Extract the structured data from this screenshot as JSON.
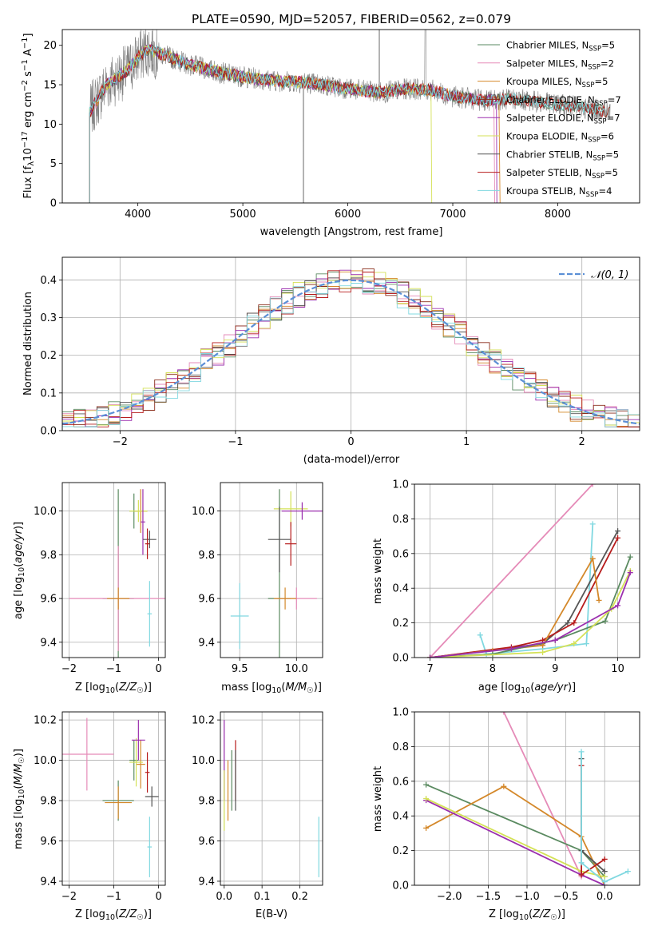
{
  "chart_data": [
    {
      "type": "line",
      "title": "PLATE=0590, MJD=52057, FIBERID=0562, z=0.079",
      "xlabel": "wavelength [Angstrom, rest frame]",
      "ylabel_parts": [
        "Flux [f",
        "λ",
        "10",
        "−17",
        " erg cm",
        "−2",
        " s",
        "−1",
        " A",
        "−1",
        "]"
      ],
      "xlim": [
        3280,
        8780
      ],
      "ylim": [
        0,
        22
      ],
      "xticks": [
        4000,
        5000,
        6000,
        7000,
        8000
      ],
      "yticks": [
        0,
        5,
        10,
        15,
        20
      ],
      "grid": false,
      "legend_placement": "right",
      "series": [
        {
          "label": "Chabrier MILES",
          "n": "5",
          "color": "#5a8a60"
        },
        {
          "label": "Salpeter MILES",
          "n": "2",
          "color": "#e58bb8"
        },
        {
          "label": "Kroupa MILES",
          "n": "5",
          "color": "#d4882a"
        },
        {
          "label": "Chabrier ELODIE",
          "n": "7",
          "color": "#8b2e1c"
        },
        {
          "label": "Salpeter ELODIE",
          "n": "7",
          "color": "#9b2fae"
        },
        {
          "label": "Kroupa ELODIE",
          "n": "6",
          "color": "#d4e157"
        },
        {
          "label": "Chabrier STELIB",
          "n": "5",
          "color": "#555555"
        },
        {
          "label": "Salpeter STELIB",
          "n": "5",
          "color": "#b71c1c"
        },
        {
          "label": "Kroupa STELIB",
          "n": "4",
          "color": "#80d8e0"
        }
      ],
      "observed_color": "#808080",
      "continuum": {
        "x": [
          3540,
          3700,
          3900,
          4000,
          4100,
          4300,
          4500,
          4800,
          5000,
          5300,
          5600,
          6000,
          6300,
          6600,
          6800,
          7000,
          7300,
          7600,
          8000,
          8300,
          8500
        ],
        "y": [
          11.5,
          15.0,
          16.8,
          18.5,
          19.5,
          18.5,
          17.5,
          16.5,
          16.0,
          15.5,
          15.3,
          14.5,
          14.0,
          14.5,
          14.3,
          13.5,
          13.0,
          13.2,
          12.5,
          12.0,
          11.5
        ]
      }
    },
    {
      "type": "bar",
      "xlabel": "(data-model)/error",
      "ylabel": "Normed distribution",
      "xlim": [
        -2.5,
        2.5
      ],
      "ylim": [
        0,
        0.46
      ],
      "xticks": [
        -2,
        -1,
        0,
        1,
        2
      ],
      "yticks": [
        0.0,
        0.1,
        0.2,
        0.3,
        0.4
      ],
      "grid": true,
      "legend": "𝒩(0, 1)",
      "legend_placement": "top-right",
      "bin_width": 0.1
    },
    {
      "type": "scatter",
      "xlabel": "Z [log10(Z/Z☉)]",
      "ylabel": "age [log10(age/yr)]",
      "xlim": [
        -2.15,
        0.15
      ],
      "ylim": [
        9.33,
        10.13
      ],
      "xticks": [
        -2,
        -1,
        0
      ],
      "yticks": [
        9.4,
        9.6,
        9.8,
        10.0
      ],
      "grid": true,
      "points": [
        {
          "x": -0.9,
          "y": 9.6,
          "xerr": 0.35,
          "yerr": 0.5,
          "color": "#5a8a60"
        },
        {
          "x": -0.55,
          "y": 10.0,
          "xerr": 0.1,
          "yerr": 0.08,
          "color": "#5a8a60"
        },
        {
          "x": -0.9,
          "y": 9.6,
          "xerr": 1.1,
          "yerr": 0.24,
          "color": "#e58bb8"
        },
        {
          "x": -0.9,
          "y": 9.6,
          "xerr": 0.25,
          "yerr": 0.05,
          "color": "#d4882a"
        },
        {
          "x": -0.4,
          "y": 10.0,
          "xerr": 0.15,
          "yerr": 0.1,
          "color": "#d4882a"
        },
        {
          "x": -0.45,
          "y": 10.0,
          "xerr": 0.2,
          "yerr": 0.05,
          "color": "#d4e157"
        },
        {
          "x": -0.35,
          "y": 9.95,
          "xerr": 0.05,
          "yerr": 0.15,
          "color": "#9b2fae"
        },
        {
          "x": -0.2,
          "y": 9.87,
          "xerr": 0.15,
          "yerr": 0.04,
          "color": "#555555"
        },
        {
          "x": -0.25,
          "y": 9.85,
          "xerr": 0.05,
          "yerr": 0.07,
          "color": "#b71c1c"
        },
        {
          "x": -0.2,
          "y": 9.53,
          "xerr": 0.05,
          "yerr": 0.15,
          "color": "#80d8e0"
        }
      ]
    },
    {
      "type": "scatter",
      "xlabel": "mass [log10(M/M☉)]",
      "ylabel": "",
      "xlim": [
        9.33,
        10.23
      ],
      "ylim": [
        9.33,
        10.13
      ],
      "xticks": [
        9.5,
        10.0
      ],
      "yticks": [
        9.4,
        9.6,
        9.8,
        10.0
      ],
      "grid": true,
      "points": [
        {
          "x": 9.85,
          "y": 9.6,
          "xerr": 0.1,
          "yerr": 0.5,
          "color": "#5a8a60"
        },
        {
          "x": 10.0,
          "y": 9.6,
          "xerr": 0.18,
          "yerr": 0.05,
          "color": "#e58bb8"
        },
        {
          "x": 9.9,
          "y": 9.6,
          "xerr": 0.1,
          "yerr": 0.05,
          "color": "#d4882a"
        },
        {
          "x": 9.95,
          "y": 10.01,
          "xerr": 0.15,
          "yerr": 0.08,
          "color": "#d4e157"
        },
        {
          "x": 10.05,
          "y": 10.0,
          "xerr": 0.18,
          "yerr": 0.04,
          "color": "#9b2fae"
        },
        {
          "x": 9.85,
          "y": 9.87,
          "xerr": 0.1,
          "yerr": 0.15,
          "color": "#555555"
        },
        {
          "x": 9.95,
          "y": 9.85,
          "xerr": 0.05,
          "yerr": 0.1,
          "color": "#b71c1c"
        },
        {
          "x": 9.5,
          "y": 9.52,
          "xerr": 0.08,
          "yerr": 0.15,
          "color": "#80d8e0"
        }
      ]
    },
    {
      "type": "line",
      "xlabel": "age [log10(age/yr)]",
      "ylabel": "mass weight",
      "xlim": [
        6.75,
        10.35
      ],
      "ylim": [
        0.0,
        1.0
      ],
      "xticks": [
        7,
        8,
        9,
        10
      ],
      "yticks": [
        0.0,
        0.2,
        0.4,
        0.6,
        0.8,
        1.0
      ],
      "grid": true,
      "series": [
        {
          "color": "#e58bb8",
          "x": [
            7.0,
            9.6
          ],
          "y": [
            0.0,
            1.0
          ]
        },
        {
          "color": "#80d8e0",
          "x": [
            7.8,
            7.9,
            8.8,
            9.5,
            9.6
          ],
          "y": [
            0.13,
            0.02,
            0.05,
            0.08,
            0.77
          ]
        },
        {
          "color": "#555555",
          "x": [
            7.0,
            8.8,
            9.2,
            10.0
          ],
          "y": [
            0.0,
            0.08,
            0.2,
            0.73
          ]
        },
        {
          "color": "#b71c1c",
          "x": [
            7.0,
            8.3,
            8.8,
            9.3,
            10.0
          ],
          "y": [
            0.0,
            0.06,
            0.1,
            0.2,
            0.69
          ]
        },
        {
          "color": "#d4882a",
          "x": [
            7.0,
            8.0,
            8.8,
            9.6,
            9.7
          ],
          "y": [
            0.0,
            0.04,
            0.07,
            0.57,
            0.33
          ]
        },
        {
          "color": "#5a8a60",
          "x": [
            7.0,
            8.0,
            9.0,
            9.8,
            10.2
          ],
          "y": [
            0.0,
            0.02,
            0.1,
            0.21,
            0.58
          ]
        },
        {
          "color": "#d4e157",
          "x": [
            7.0,
            8.8,
            9.3,
            9.9,
            10.2
          ],
          "y": [
            0.0,
            0.03,
            0.08,
            0.28,
            0.5
          ]
        },
        {
          "color": "#9b2fae",
          "x": [
            7.0,
            8.3,
            9.0,
            10.0,
            10.2
          ],
          "y": [
            0.0,
            0.05,
            0.1,
            0.3,
            0.49
          ]
        }
      ]
    },
    {
      "type": "scatter",
      "xlabel": "Z [log10(Z/Z☉)]",
      "ylabel": "mass [log10(M/M☉)]",
      "xlim": [
        -2.15,
        0.15
      ],
      "ylim": [
        9.38,
        10.24
      ],
      "xticks": [
        -2,
        -1,
        0
      ],
      "yticks": [
        9.4,
        9.6,
        9.8,
        10.0,
        10.2
      ],
      "grid": true,
      "points": [
        {
          "x": -0.9,
          "y": 9.8,
          "xerr": 0.35,
          "yerr": 0.1,
          "color": "#5a8a60"
        },
        {
          "x": -0.55,
          "y": 10.0,
          "xerr": 0.1,
          "yerr": 0.1,
          "color": "#5a8a60"
        },
        {
          "x": -1.6,
          "y": 10.03,
          "xerr": 0.6,
          "yerr": 0.18,
          "color": "#e58bb8"
        },
        {
          "x": -0.9,
          "y": 9.79,
          "xerr": 0.3,
          "yerr": 0.08,
          "color": "#d4882a"
        },
        {
          "x": -0.4,
          "y": 9.98,
          "xerr": 0.1,
          "yerr": 0.12,
          "color": "#d4882a"
        },
        {
          "x": -0.5,
          "y": 9.99,
          "xerr": 0.15,
          "yerr": 0.12,
          "color": "#d4e157"
        },
        {
          "x": -0.45,
          "y": 10.1,
          "xerr": 0.15,
          "yerr": 0.1,
          "color": "#9b2fae"
        },
        {
          "x": -0.15,
          "y": 9.82,
          "xerr": 0.15,
          "yerr": 0.05,
          "color": "#555555"
        },
        {
          "x": -0.25,
          "y": 9.94,
          "xerr": 0.05,
          "yerr": 0.1,
          "color": "#b71c1c"
        },
        {
          "x": -0.2,
          "y": 9.57,
          "xerr": 0.05,
          "yerr": 0.15,
          "color": "#80d8e0"
        }
      ]
    },
    {
      "type": "scatter",
      "xlabel": "E(B-V)",
      "ylabel": "",
      "xlim": [
        -0.01,
        0.26
      ],
      "ylim": [
        9.38,
        10.24
      ],
      "xticks": [
        0.0,
        0.1,
        0.2
      ],
      "yticks": [
        9.4,
        9.6,
        9.8,
        10.0,
        10.2
      ],
      "grid": true,
      "points": [
        {
          "x": 0.0,
          "y": 10.0,
          "yerr": 0.2,
          "color": "#9b2fae"
        },
        {
          "x": 0.01,
          "y": 9.85,
          "yerr": 0.15,
          "color": "#d4882a"
        },
        {
          "x": 0.0,
          "y": 9.8,
          "yerr": 0.15,
          "color": "#d4e157"
        },
        {
          "x": 0.02,
          "y": 9.9,
          "yerr": 0.15,
          "color": "#5a8a60"
        },
        {
          "x": 0.03,
          "y": 9.95,
          "yerr": 0.15,
          "color": "#b71c1c"
        },
        {
          "x": 0.03,
          "y": 9.9,
          "yerr": 0.15,
          "color": "#555555"
        },
        {
          "x": 0.25,
          "y": 9.57,
          "yerr": 0.15,
          "color": "#80d8e0"
        }
      ]
    },
    {
      "type": "line",
      "xlabel": "Z [log10(Z/Z☉)]",
      "ylabel": "mass weight",
      "xlim": [
        -2.45,
        0.45
      ],
      "ylim": [
        0.0,
        1.0
      ],
      "xticks": [
        -2.0,
        -1.5,
        -1.0,
        -0.5,
        0.0
      ],
      "yticks": [
        0.0,
        0.2,
        0.4,
        0.6,
        0.8,
        1.0
      ],
      "grid": true,
      "series": [
        {
          "color": "#e58bb8",
          "x": [
            -1.3,
            -0.3
          ],
          "y": [
            1.0,
            0.05
          ]
        },
        {
          "color": "#5a8a60",
          "x": [
            -2.3,
            -0.3,
            0.0
          ],
          "y": [
            0.58,
            0.2,
            0.05
          ]
        },
        {
          "color": "#d4882a",
          "x": [
            -2.3,
            -1.3,
            -0.3,
            0.0
          ],
          "y": [
            0.33,
            0.57,
            0.28,
            0.0
          ]
        },
        {
          "color": "#9b2fae",
          "x": [
            -2.3,
            -0.3,
            0.0
          ],
          "y": [
            0.49,
            0.06,
            0.0
          ]
        },
        {
          "color": "#d4e157",
          "x": [
            -2.3,
            -0.3,
            0.0
          ],
          "y": [
            0.5,
            0.08,
            0.05
          ]
        },
        {
          "color": "#555555",
          "x": [
            -0.3,
            -0.3,
            0.0
          ],
          "y": [
            0.73,
            0.2,
            0.08
          ]
        },
        {
          "color": "#b71c1c",
          "x": [
            -0.3,
            -0.3,
            0.0
          ],
          "y": [
            0.69,
            0.06,
            0.15
          ]
        },
        {
          "color": "#80d8e0",
          "x": [
            -0.3,
            -0.3,
            0.0,
            0.3
          ],
          "y": [
            0.77,
            0.13,
            0.02,
            0.08
          ]
        }
      ]
    }
  ]
}
